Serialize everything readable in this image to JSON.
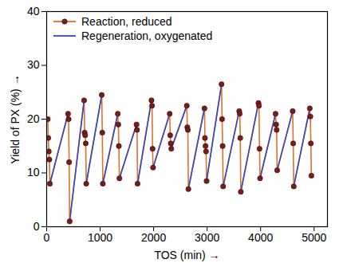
{
  "chart_data": {
    "type": "line",
    "x_label": "TOS (min)",
    "y_label": "Yield of PX (%)",
    "xlim": [
      0,
      5250
    ],
    "xticks": [
      0,
      1000,
      2000,
      3000,
      4000,
      5000
    ],
    "ylim": [
      0,
      40
    ],
    "yticks": [
      0,
      10,
      20,
      30,
      40
    ],
    "grid": false,
    "legend": "upper left",
    "x": [
      20,
      30,
      40,
      50,
      60,
      400,
      410,
      420,
      430,
      700,
      710,
      720,
      730,
      740,
      1030,
      1040,
      1050,
      1330,
      1340,
      1350,
      1360,
      1680,
      1690,
      1700,
      1960,
      1970,
      1980,
      1990,
      2300,
      2310,
      2320,
      2330,
      2620,
      2630,
      2640,
      2650,
      2950,
      2960,
      2970,
      2980,
      2990,
      3270,
      3280,
      3290,
      3300,
      3600,
      3610,
      3620,
      3630,
      3960,
      3970,
      3980,
      3990,
      4280,
      4290,
      4300,
      4310,
      4600,
      4610,
      4620,
      4920,
      4930,
      4940,
      4950
    ],
    "series": [
      {
        "name": "Reaction, reduced",
        "color": "#d9732e",
        "marker": "circle",
        "line_style": "solid",
        "values": [
          20,
          16.5,
          14,
          12.5,
          8,
          21,
          20,
          12,
          1,
          23.5,
          17.5,
          17,
          15.5,
          8,
          24.5,
          17.5,
          8,
          21,
          19,
          15,
          9,
          19,
          18,
          8,
          23.5,
          22.5,
          14.5,
          11,
          21,
          17,
          15.5,
          14.5,
          22.5,
          18.5,
          18,
          7,
          22,
          16.5,
          15,
          14,
          8.5,
          26.5,
          20,
          15,
          7.5,
          21.5,
          21,
          16.5,
          6.5,
          23,
          22.5,
          14.5,
          9,
          21,
          19,
          18,
          10.5,
          21.5,
          15.5,
          7.5,
          22,
          20.5,
          15.5,
          9.5
        ]
      },
      {
        "name": "Regeneration, oxygenated",
        "color": "#3346c4",
        "line_style": "solid",
        "values": [
          null,
          null,
          null,
          null,
          8,
          21,
          null,
          null,
          1,
          23.5,
          null,
          null,
          null,
          8,
          24.5,
          null,
          8,
          21,
          null,
          null,
          9,
          19,
          null,
          8,
          23.5,
          null,
          null,
          11,
          21,
          null,
          null,
          14.5,
          22.5,
          null,
          null,
          7,
          22,
          null,
          null,
          null,
          8.5,
          26.5,
          null,
          null,
          7.5,
          21.5,
          null,
          null,
          6.5,
          23,
          null,
          null,
          9,
          21,
          null,
          null,
          10.5,
          21.5,
          null,
          7.5,
          22,
          null,
          null,
          null
        ]
      }
    ]
  }
}
